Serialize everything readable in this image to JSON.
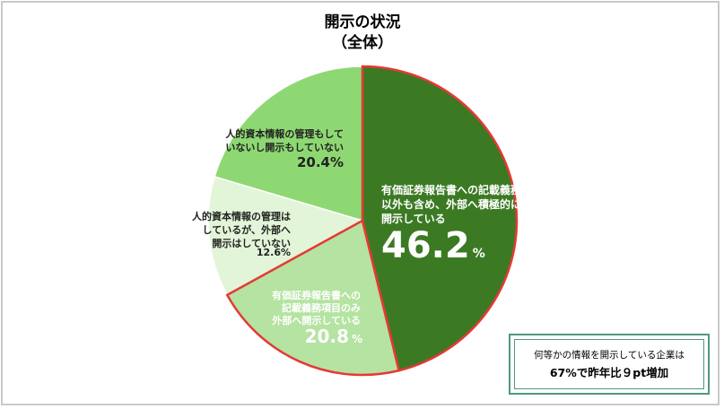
{
  "chart_data": {
    "type": "pie",
    "title": "開示の状況",
    "subtitle": "（全体）",
    "unit": "%",
    "slices": [
      {
        "lines": [
          "有価証券報告書への記載義務項目",
          "以外も含め、外部へ積極的に",
          "開示している"
        ],
        "value": 46.2,
        "value_label": "46.2",
        "color": "#3b7a23",
        "text_color": "#ffffff",
        "highlight": true
      },
      {
        "lines": [
          "有価証券報告書への",
          "記載義務項目のみ",
          "外部へ開示している"
        ],
        "value": 20.8,
        "value_label": "20.8",
        "color": "#b5e3a1",
        "text_color": "#ffffff",
        "highlight": true
      },
      {
        "lines": [
          "人的資本情報の管理は",
          "しているが、外部へ",
          "開示はしていない"
        ],
        "value": 12.6,
        "value_label": "12.6%",
        "color": "#e2f5d8",
        "text_color": "#222222",
        "highlight": false
      },
      {
        "lines": [
          "人的資本情報の管理もして",
          "いないし開示もしていない"
        ],
        "value": 20.4,
        "value_label": "20.4%",
        "color": "#8ed873",
        "text_color": "#222222",
        "highlight": false
      }
    ],
    "highlight_color": "#e53935"
  },
  "note": {
    "line1": "何等かの情報を開示している企業は",
    "line2": "67%で昨年比９pt増加"
  }
}
